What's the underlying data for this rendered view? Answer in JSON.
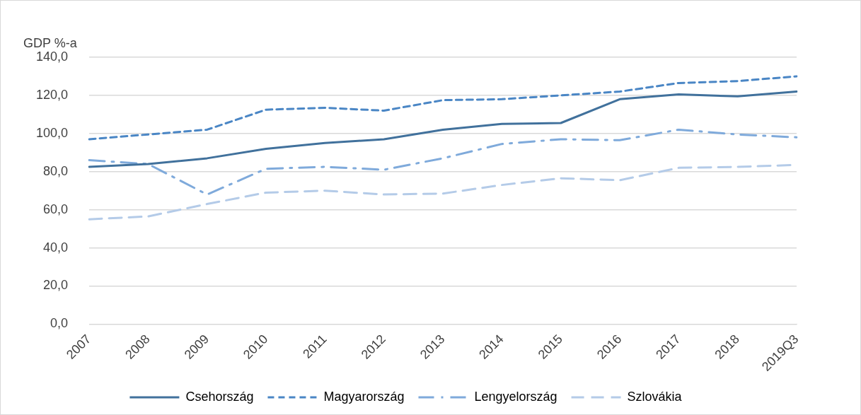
{
  "chart_data": {
    "type": "line",
    "ylabel": "GDP %-a",
    "categories": [
      "2007",
      "2008",
      "2009",
      "2010",
      "2011",
      "2012",
      "2013",
      "2014",
      "2015",
      "2016",
      "2017",
      "2018",
      "2019Q3"
    ],
    "series": [
      {
        "name": "Csehország",
        "color": "#41719c",
        "line_style": "solid",
        "values": [
          82.5,
          84,
          87,
          92,
          95,
          97,
          102,
          105,
          105.5,
          118,
          120.5,
          119.5,
          122
        ]
      },
      {
        "name": "Magyarország",
        "color": "#4a86c5",
        "line_style": "dashed",
        "values": [
          97,
          99.5,
          102,
          112.5,
          113.5,
          112,
          117.5,
          118,
          120,
          122,
          126.5,
          127.5,
          130
        ]
      },
      {
        "name": "Lengyelország",
        "color": "#7faadb",
        "line_style": "dashdot",
        "values": [
          86,
          84,
          68,
          81.5,
          82.5,
          81,
          87,
          94.5,
          97,
          96.5,
          102,
          99.5,
          98
        ]
      },
      {
        "name": "Szlovákia",
        "color": "#b4cbe8",
        "line_style": "longdash",
        "values": [
          55,
          56.5,
          63,
          69,
          70,
          68,
          68.5,
          73,
          76.5,
          75.5,
          82,
          82.5,
          83.5
        ]
      }
    ],
    "ylim": [
      0,
      140
    ],
    "yticks": [
      {
        "value": 0,
        "label": "0,0"
      },
      {
        "value": 20,
        "label": "20,0"
      },
      {
        "value": 40,
        "label": "40,0"
      },
      {
        "value": 60,
        "label": "60,0"
      },
      {
        "value": 80,
        "label": "80,0"
      },
      {
        "value": 100,
        "label": "100,0"
      },
      {
        "value": 120,
        "label": "120,0"
      },
      {
        "value": 140,
        "label": "140,0"
      }
    ],
    "grid": "y",
    "legend": "bottom",
    "marker": "none"
  }
}
